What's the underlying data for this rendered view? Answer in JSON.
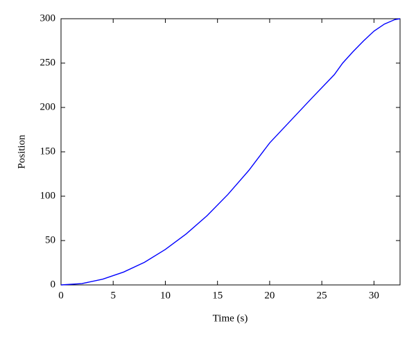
{
  "chart_data": {
    "type": "line",
    "x_label": "Time (s)",
    "y_label": "Position",
    "x": [
      0,
      2,
      4,
      6,
      8,
      10,
      12,
      14,
      16,
      18,
      20,
      22,
      24,
      26.2,
      27,
      28,
      29,
      30,
      31,
      32,
      32.5
    ],
    "series": [
      {
        "name": "Position",
        "color": "#0000ff",
        "values": [
          0,
          1.5,
          6.5,
          14.5,
          25.5,
          40,
          57.5,
          78,
          102,
          129,
          160,
          185,
          210,
          237,
          250,
          263,
          275,
          286,
          294,
          299,
          300
        ]
      }
    ],
    "xlim": [
      0,
      32.5
    ],
    "xticks": [
      0,
      5,
      10,
      15,
      20,
      25,
      30
    ],
    "ylim": [
      0,
      300
    ],
    "yticks": [
      0,
      50,
      100,
      150,
      200,
      250,
      300
    ]
  }
}
